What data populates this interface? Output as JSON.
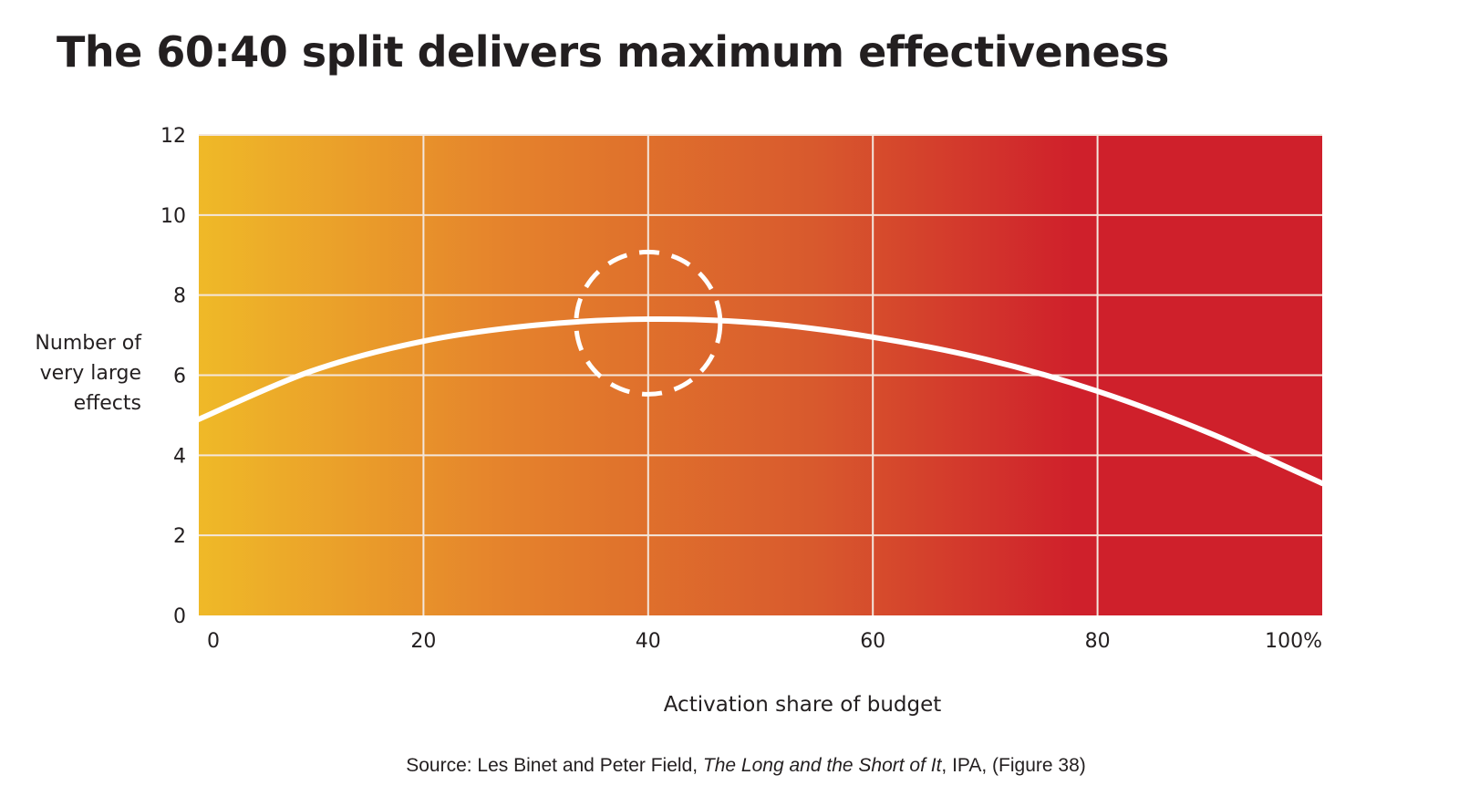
{
  "title": "The 60:40 split delivers maximum effectiveness",
  "chart_data": {
    "type": "line",
    "title": "The 60:40 split delivers maximum effectiveness",
    "xlabel": "Activation share of budget",
    "ylabel_lines": [
      "Number of",
      "very large",
      "effects"
    ],
    "xlim": [
      0,
      100
    ],
    "ylim": [
      0,
      12
    ],
    "x_ticks": [
      0,
      20,
      40,
      60,
      80,
      100
    ],
    "x_tick_labels": [
      "0",
      "20",
      "40",
      "60",
      "80",
      "100%"
    ],
    "y_ticks": [
      0,
      2,
      4,
      6,
      8,
      10,
      12
    ],
    "y_tick_labels": [
      "0",
      "2",
      "4",
      "6",
      "8",
      "10",
      "12"
    ],
    "grid": true,
    "series": [
      {
        "x": [
          0,
          10,
          20,
          30,
          40,
          50,
          60,
          70,
          80,
          90,
          100
        ],
        "y": [
          4.9,
          6.1,
          6.85,
          7.25,
          7.4,
          7.3,
          6.95,
          6.4,
          5.6,
          4.55,
          3.3
        ]
      }
    ],
    "highlight": {
      "x": 40,
      "y": 7.3,
      "shape": "dashed-circle"
    },
    "background_gradient": [
      "#efb928",
      "#e5832c",
      "#d8592d",
      "#cf202b"
    ],
    "line_color": "#ffffff",
    "gridline_color": "#f3e6dc"
  },
  "source": {
    "prefix": "Source: Les Binet and Peter Field, ",
    "italic": "The Long and the Short of It",
    "suffix": ", IPA, (Figure 38)"
  }
}
